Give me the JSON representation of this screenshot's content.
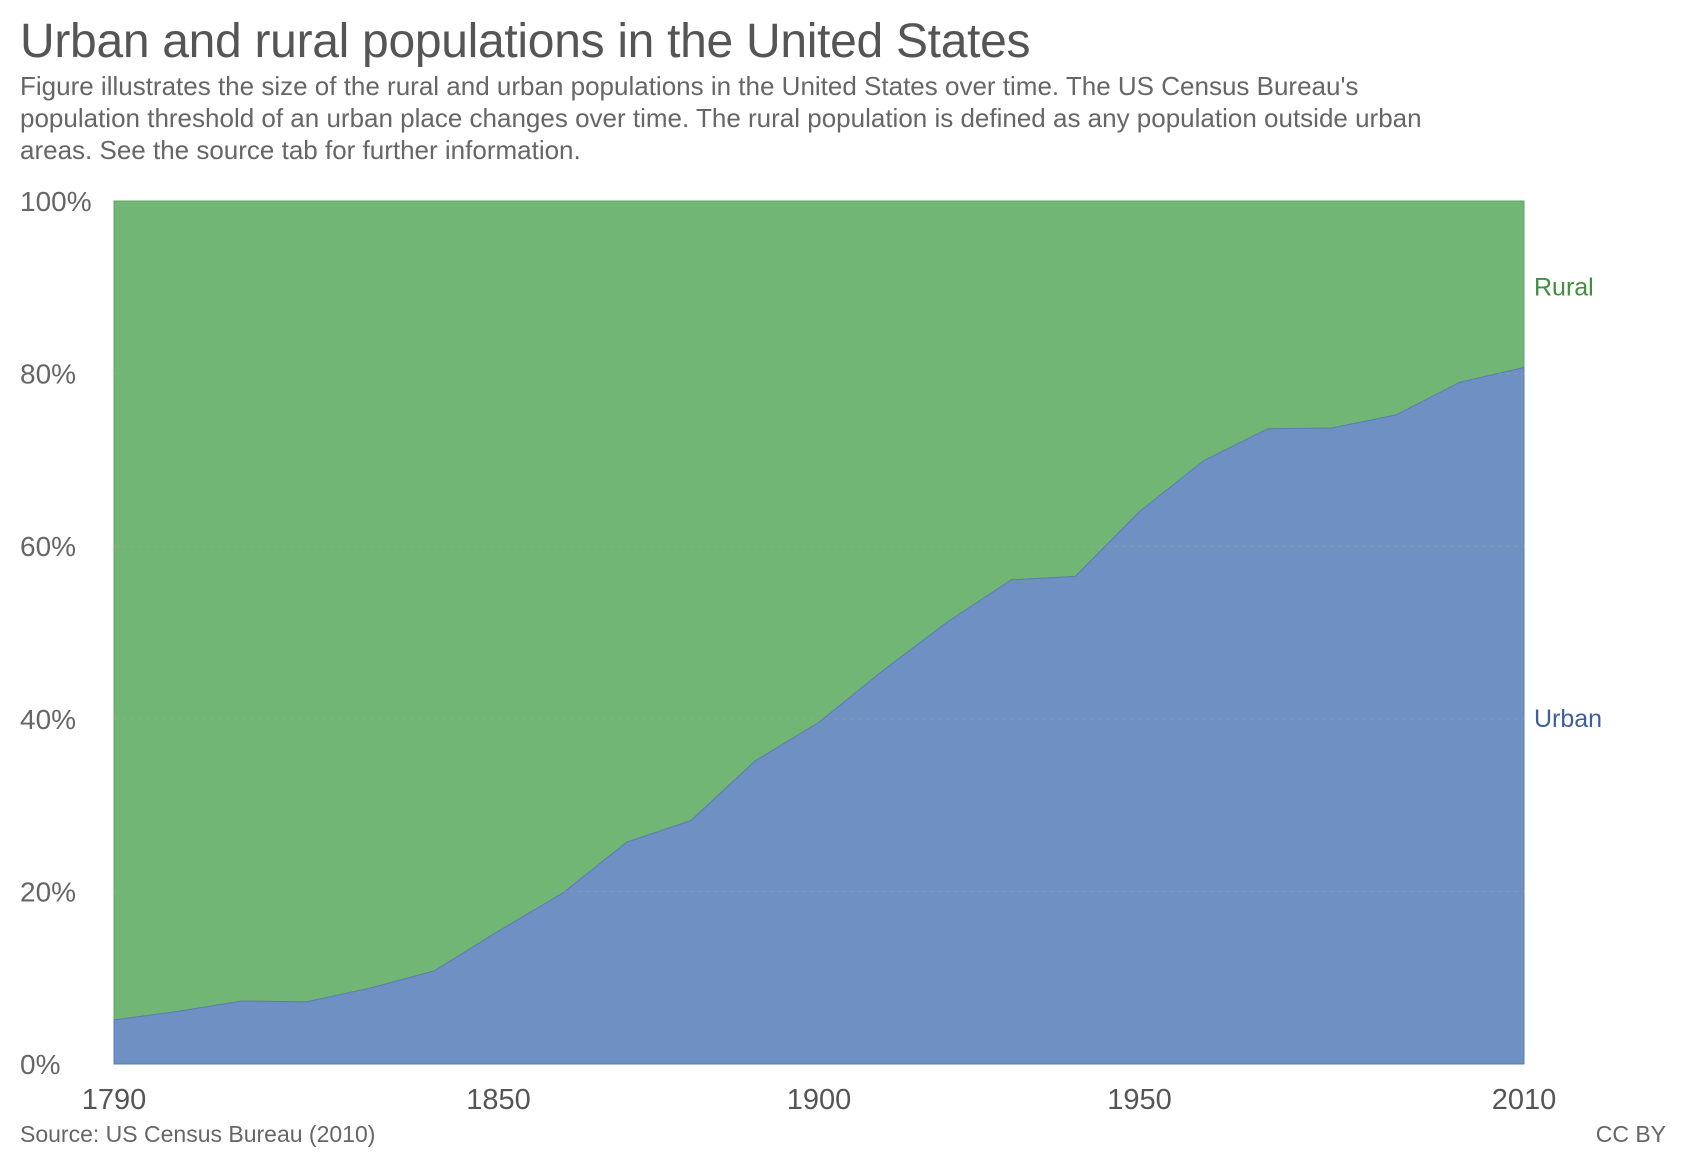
{
  "title": "Urban and rural populations in the United States",
  "subtitle": "Figure illustrates the size of the rural and urban populations in the United States over time. The US Census Bureau's population threshold of an urban place changes over time. The rural population is defined as any population outside urban areas. See the source tab for further information.",
  "source": "Source: US Census Bureau (2010)",
  "license": "CC BY",
  "colors": {
    "urban": "#6f90c3",
    "rural": "#72b676",
    "urban_label": "#3f5f9a",
    "rural_label": "#3e8f3e",
    "grid": "#9aa99a"
  },
  "chart_data": {
    "type": "area",
    "stacked": true,
    "stack_normalized": true,
    "x": [
      1790,
      1800,
      1810,
      1820,
      1830,
      1840,
      1850,
      1860,
      1870,
      1880,
      1890,
      1900,
      1910,
      1920,
      1930,
      1940,
      1950,
      1960,
      1970,
      1980,
      1990,
      2000,
      2010
    ],
    "series": [
      {
        "name": "Urban",
        "values": [
          5.1,
          6.1,
          7.3,
          7.2,
          8.8,
          10.8,
          15.4,
          19.8,
          25.7,
          28.2,
          35.1,
          39.6,
          45.6,
          51.2,
          56.1,
          56.5,
          64.0,
          69.9,
          73.6,
          73.7,
          75.2,
          79.0,
          80.7
        ]
      },
      {
        "name": "Rural",
        "values": [
          94.9,
          93.9,
          92.7,
          92.8,
          91.2,
          89.2,
          84.6,
          80.2,
          74.3,
          71.8,
          64.9,
          60.4,
          54.4,
          48.8,
          43.9,
          43.5,
          36.0,
          30.1,
          26.4,
          26.3,
          24.8,
          21.0,
          19.3
        ]
      }
    ],
    "xlim": [
      1790,
      2010
    ],
    "ylim": [
      0,
      100
    ],
    "y_ticks": [
      "0%",
      "20%",
      "40%",
      "60%",
      "80%",
      "100%"
    ],
    "y_tick_values": [
      0,
      20,
      40,
      60,
      80,
      100
    ],
    "x_ticks": [
      "1790",
      "1850",
      "1900",
      "1950",
      "2010"
    ],
    "x_tick_values": [
      1790,
      1850,
      1900,
      1950,
      2010
    ],
    "grid": true,
    "legend": "inline-right",
    "xlabel": "",
    "ylabel": ""
  }
}
